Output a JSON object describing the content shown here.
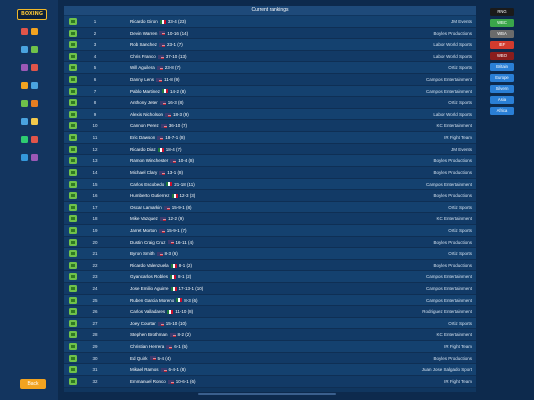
{
  "app": {
    "logo_text": "BOXING",
    "back_label": "Back"
  },
  "table": {
    "title": "Current rankings",
    "rows": [
      {
        "rank": "1",
        "name": "Ricardo Giron",
        "flag": "mx",
        "record": "33-4 (23)",
        "promotion": "JM Events"
      },
      {
        "rank": "2",
        "name": "Devin Warren",
        "flag": "us",
        "record": "10-16 (14)",
        "promotion": "Boyles Productions"
      },
      {
        "rank": "3",
        "name": "Rob Sanchez",
        "flag": "us",
        "record": "23-1 (7)",
        "promotion": "Labor World Sports"
      },
      {
        "rank": "4",
        "name": "Chris Franco",
        "flag": "us",
        "record": "37-10 (13)",
        "promotion": "Labor World Sports"
      },
      {
        "rank": "5",
        "name": "Will Aguilera",
        "flag": "us",
        "record": "23-8 (7)",
        "promotion": "Ortiz Sports"
      },
      {
        "rank": "6",
        "name": "Danny Lens",
        "flag": "us",
        "record": "11-8 (9)",
        "promotion": "Campos Entertainment"
      },
      {
        "rank": "7",
        "name": "Pablo Martinez",
        "flag": "mx",
        "record": "14-2 (8)",
        "promotion": "Campos Entertainment"
      },
      {
        "rank": "8",
        "name": "Anthony Jeter",
        "flag": "us",
        "record": "16-3 (8)",
        "promotion": "Ortiz Sports"
      },
      {
        "rank": "9",
        "name": "Alexis Nicholson",
        "flag": "us",
        "record": "18-3 (9)",
        "promotion": "Labor World Sports"
      },
      {
        "rank": "10",
        "name": "Cannon Perez",
        "flag": "us",
        "record": "36-10 (7)",
        "promotion": "KC Entertainment"
      },
      {
        "rank": "11",
        "name": "Eric Dawson",
        "flag": "us",
        "record": "18-7-1 (8)",
        "promotion": "IR Fight Team"
      },
      {
        "rank": "12",
        "name": "Ricardo Diaz",
        "flag": "mx",
        "record": "18-4 (7)",
        "promotion": "JM Events"
      },
      {
        "rank": "13",
        "name": "Ramon Winchester",
        "flag": "us",
        "record": "10-4 (8)",
        "promotion": "Boyles Productions"
      },
      {
        "rank": "14",
        "name": "Michael Clary",
        "flag": "us",
        "record": "13-1 (8)",
        "promotion": "Boyles Productions"
      },
      {
        "rank": "15",
        "name": "Carlos Escobedo",
        "flag": "mx",
        "record": "21-18 (11)",
        "promotion": "Campos Entertainment"
      },
      {
        "rank": "16",
        "name": "Humberto Gutierrez",
        "flag": "mx",
        "record": "12-3 (3)",
        "promotion": "Boyles Productions"
      },
      {
        "rank": "17",
        "name": "Oscar Lamarkin",
        "flag": "us",
        "record": "15-9-1 (8)",
        "promotion": "Ortiz Sports"
      },
      {
        "rank": "18",
        "name": "Mike Vazquez",
        "flag": "us",
        "record": "12-2 (9)",
        "promotion": "KC Entertainment"
      },
      {
        "rank": "19",
        "name": "Jarret Morton",
        "flag": "us",
        "record": "15-9-1 (7)",
        "promotion": "Ortiz Sports"
      },
      {
        "rank": "20",
        "name": "Dustin Craig Cruz",
        "flag": "us",
        "record": "16-11 (4)",
        "promotion": "Boyles Productions"
      },
      {
        "rank": "21",
        "name": "Byron Smith",
        "flag": "us",
        "record": "8-3 (6)",
        "promotion": "Ortiz Sports"
      },
      {
        "rank": "22",
        "name": "Ricardo Valenzuela",
        "flag": "mx",
        "record": "8-1 (2)",
        "promotion": "Boyles Productions"
      },
      {
        "rank": "23",
        "name": "Gyancarlos Robles",
        "flag": "mx",
        "record": "8-1 (2)",
        "promotion": "Campos Entertainment"
      },
      {
        "rank": "24",
        "name": "Jose Emilio Aguirre",
        "flag": "mx",
        "record": "17-13-1 (10)",
        "promotion": "Campos Entertainment"
      },
      {
        "rank": "25",
        "name": "Ruben Garcia Moreno",
        "flag": "mx",
        "record": "8-3 (6)",
        "promotion": "Campos Entertainment"
      },
      {
        "rank": "26",
        "name": "Carlos Valladares",
        "flag": "mx",
        "record": "11-10 (8)",
        "promotion": "Rodriguez Entertainment"
      },
      {
        "rank": "27",
        "name": "Joey Courtar",
        "flag": "us",
        "record": "15-10 (10)",
        "promotion": "Ortiz Sports"
      },
      {
        "rank": "28",
        "name": "Stephen Brothman",
        "flag": "us",
        "record": "8-2 (2)",
        "promotion": "KC Entertainment"
      },
      {
        "rank": "29",
        "name": "Christian Herrera",
        "flag": "us",
        "record": "6-1 (5)",
        "promotion": "IR Fight Team"
      },
      {
        "rank": "30",
        "name": "Ed Quirk",
        "flag": "us",
        "record": "5-4 (4)",
        "promotion": "Boyles Productions"
      },
      {
        "rank": "31",
        "name": "Mikael Ramos",
        "flag": "us",
        "record": "6-4-1 (8)",
        "promotion": "Juan Jose Salgado Sport"
      },
      {
        "rank": "32",
        "name": "Emmanuel Ronco",
        "flag": "us",
        "record": "10-6-1 (6)",
        "promotion": "IR Fight Team"
      }
    ]
  },
  "filters": [
    {
      "label": "RNG",
      "color": "#1a1a1a"
    },
    {
      "label": "WBC",
      "color": "#3aa64a"
    },
    {
      "label": "WBA",
      "color": "#6b6b6b"
    },
    {
      "label": "IBF",
      "color": "#d23b2e"
    },
    {
      "label": "WBO",
      "color": "#8a1d1d"
    },
    {
      "label": "Britain",
      "color": "#2a7fd6"
    },
    {
      "label": "Europe",
      "color": "#2a7fd6"
    },
    {
      "label": "Silvern",
      "color": "#2a7fd6"
    },
    {
      "label": "Asia",
      "color": "#2a7fd6"
    },
    {
      "label": "Africa",
      "color": "#2a7fd6"
    }
  ],
  "sidebar_icon_colors": [
    "#e0554a",
    "#f2a320",
    "#4aa3df",
    "#6fc24a",
    "#9b59b6",
    "#e0554a",
    "#f2a320",
    "#4aa3df",
    "#6fc24a",
    "#e67e22",
    "#4aa3df",
    "#f2c94c",
    "#2ecc71",
    "#e0554a",
    "#3498db",
    "#9b59b6"
  ]
}
